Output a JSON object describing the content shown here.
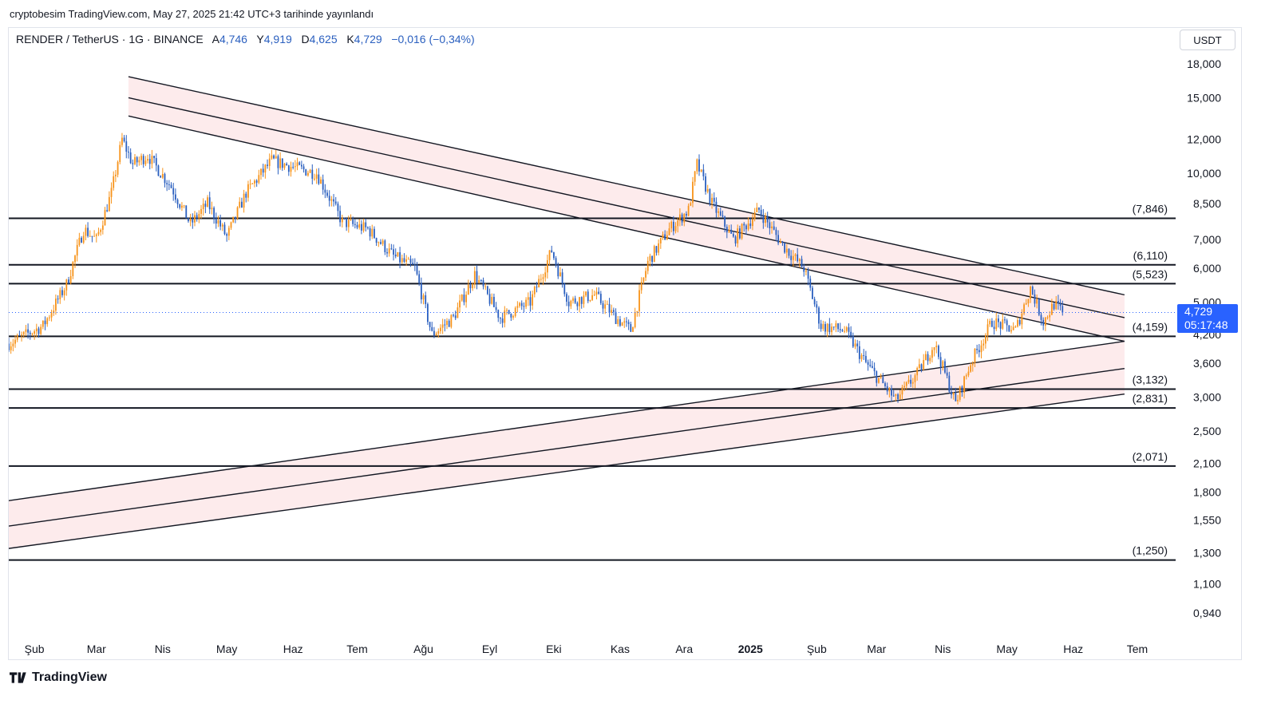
{
  "published_by": "cryptobesim TradingView.com, May 27, 2025 21:42 UTC+3 tarihinde yayınlandı",
  "legend": {
    "symbol": "RENDER / TetherUS · 1G · BINANCE",
    "open_label": "A",
    "open": "4,746",
    "high_label": "Y",
    "high": "4,919",
    "low_label": "D",
    "low": "4,625",
    "close_label": "K",
    "close": "4,729",
    "change": "−0,016 (−0,34%)"
  },
  "currency": "USDT",
  "price_tag": {
    "price": "4,729",
    "countdown": "05:17:48"
  },
  "brand": "TradingView",
  "colors": {
    "up": "#f7931a",
    "down": "#2a5fbf",
    "channel_fill": "#fce4e6",
    "price_tag": "#2962ff"
  },
  "chart_data": {
    "type": "candlestick",
    "y_scale": "log",
    "ylim": [
      0.85,
      20.5
    ],
    "y_ticks": [
      {
        "value": 18,
        "label": "18,000"
      },
      {
        "value": 15,
        "label": "15,000"
      },
      {
        "value": 12,
        "label": "12,000"
      },
      {
        "value": 10,
        "label": "10,000"
      },
      {
        "value": 8.5,
        "label": "8,500"
      },
      {
        "value": 7,
        "label": "7,000"
      },
      {
        "value": 6,
        "label": "6,000"
      },
      {
        "value": 5,
        "label": "5,000"
      },
      {
        "value": 4.2,
        "label": "4,200"
      },
      {
        "value": 3.6,
        "label": "3,600"
      },
      {
        "value": 3,
        "label": "3,000"
      },
      {
        "value": 2.5,
        "label": "2,500"
      },
      {
        "value": 2.1,
        "label": "2,100"
      },
      {
        "value": 1.8,
        "label": "1,800"
      },
      {
        "value": 1.55,
        "label": "1,550"
      },
      {
        "value": 1.3,
        "label": "1,300"
      },
      {
        "value": 1.1,
        "label": "1,100"
      },
      {
        "value": 0.94,
        "label": "0,940"
      }
    ],
    "x_labels": [
      {
        "date": "2024-02-01",
        "label": "Şub"
      },
      {
        "date": "2024-03-01",
        "label": "Mar"
      },
      {
        "date": "2024-04-01",
        "label": "Nis"
      },
      {
        "date": "2024-05-01",
        "label": "May"
      },
      {
        "date": "2024-06-01",
        "label": "Haz"
      },
      {
        "date": "2024-07-01",
        "label": "Tem"
      },
      {
        "date": "2024-08-01",
        "label": "Ağu"
      },
      {
        "date": "2024-09-01",
        "label": "Eyl"
      },
      {
        "date": "2024-10-01",
        "label": "Eki"
      },
      {
        "date": "2024-11-01",
        "label": "Kas"
      },
      {
        "date": "2024-12-01",
        "label": "Ara"
      },
      {
        "date": "2025-01-01",
        "label": "2025",
        "bold": true
      },
      {
        "date": "2025-02-01",
        "label": "Şub"
      },
      {
        "date": "2025-03-01",
        "label": "Mar"
      },
      {
        "date": "2025-04-01",
        "label": "Nis"
      },
      {
        "date": "2025-05-01",
        "label": "May"
      },
      {
        "date": "2025-06-01",
        "label": "Haz"
      },
      {
        "date": "2025-07-01",
        "label": "Tem"
      }
    ],
    "horizontal_levels": [
      {
        "value": 7.846,
        "label": "(7,846)"
      },
      {
        "value": 6.11,
        "label": "(6,110)"
      },
      {
        "value": 5.523,
        "label": "(5,523)"
      },
      {
        "value": 4.159,
        "label": "(4,159)"
      },
      {
        "value": 3.132,
        "label": "(3,132)"
      },
      {
        "value": 2.831,
        "label": "(2,831)"
      },
      {
        "value": 2.071,
        "label": "(2,071)"
      },
      {
        "value": 1.25,
        "label": "(1,250)"
      }
    ],
    "last_price": 4.729,
    "channels": [
      {
        "name": "descending",
        "lines": [
          {
            "from": {
              "date": "2024-03-16",
              "value": 16.8
            },
            "to": {
              "date": "2025-06-25",
              "value": 5.2
            }
          },
          {
            "from": {
              "date": "2024-03-16",
              "value": 15.0
            },
            "to": {
              "date": "2025-06-25",
              "value": 4.6
            }
          },
          {
            "from": {
              "date": "2024-03-16",
              "value": 13.6
            },
            "to": {
              "date": "2025-06-25",
              "value": 4.05
            }
          }
        ]
      },
      {
        "name": "ascending",
        "lines": [
          {
            "from": {
              "date": "2024-01-20",
              "value": 1.72
            },
            "to": {
              "date": "2025-06-25",
              "value": 4.05
            }
          },
          {
            "from": {
              "date": "2024-01-20",
              "value": 1.5
            },
            "to": {
              "date": "2025-06-25",
              "value": 3.5
            }
          },
          {
            "from": {
              "date": "2024-01-20",
              "value": 1.33
            },
            "to": {
              "date": "2025-06-25",
              "value": 3.05
            }
          }
        ]
      }
    ],
    "price_path": [
      [
        "2024-01-20",
        4.0
      ],
      [
        "2024-02-05",
        4.4
      ],
      [
        "2024-02-16",
        5.5
      ],
      [
        "2024-02-24",
        7.4
      ],
      [
        "2024-03-01",
        7.0
      ],
      [
        "2024-03-08",
        9.0
      ],
      [
        "2024-03-13",
        12.0
      ],
      [
        "2024-03-18",
        10.5
      ],
      [
        "2024-03-25",
        11.0
      ],
      [
        "2024-04-05",
        9.3
      ],
      [
        "2024-04-14",
        7.6
      ],
      [
        "2024-04-22",
        8.5
      ],
      [
        "2024-05-01",
        7.1
      ],
      [
        "2024-05-10",
        9.0
      ],
      [
        "2024-05-22",
        10.7
      ],
      [
        "2024-06-02",
        10.3
      ],
      [
        "2024-06-12",
        10.0
      ],
      [
        "2024-06-24",
        7.7
      ],
      [
        "2024-07-06",
        7.4
      ],
      [
        "2024-07-18",
        6.4
      ],
      [
        "2024-07-28",
        6.0
      ],
      [
        "2024-08-05",
        4.2
      ],
      [
        "2024-08-15",
        4.6
      ],
      [
        "2024-08-25",
        5.8
      ],
      [
        "2024-09-06",
        4.6
      ],
      [
        "2024-09-20",
        5.0
      ],
      [
        "2024-09-30",
        6.6
      ],
      [
        "2024-10-08",
        5.0
      ],
      [
        "2024-10-20",
        5.2
      ],
      [
        "2024-10-30",
        4.6
      ],
      [
        "2024-11-06",
        4.3
      ],
      [
        "2024-11-14",
        6.2
      ],
      [
        "2024-11-24",
        7.4
      ],
      [
        "2024-12-03",
        8.2
      ],
      [
        "2024-12-07",
        10.5
      ],
      [
        "2024-12-14",
        8.5
      ],
      [
        "2024-12-24",
        7.0
      ],
      [
        "2025-01-05",
        8.2
      ],
      [
        "2025-01-16",
        6.8
      ],
      [
        "2025-01-26",
        6.0
      ],
      [
        "2025-02-03",
        4.4
      ],
      [
        "2025-02-14",
        4.3
      ],
      [
        "2025-02-24",
        3.6
      ],
      [
        "2025-03-10",
        2.95
      ],
      [
        "2025-03-20",
        3.4
      ],
      [
        "2025-03-28",
        4.0
      ],
      [
        "2025-04-07",
        2.9
      ],
      [
        "2025-04-14",
        3.6
      ],
      [
        "2025-04-24",
        4.5
      ],
      [
        "2025-05-05",
        4.3
      ],
      [
        "2025-05-12",
        5.4
      ],
      [
        "2025-05-18",
        4.5
      ],
      [
        "2025-05-23",
        4.95
      ],
      [
        "2025-05-27",
        4.729
      ]
    ]
  }
}
